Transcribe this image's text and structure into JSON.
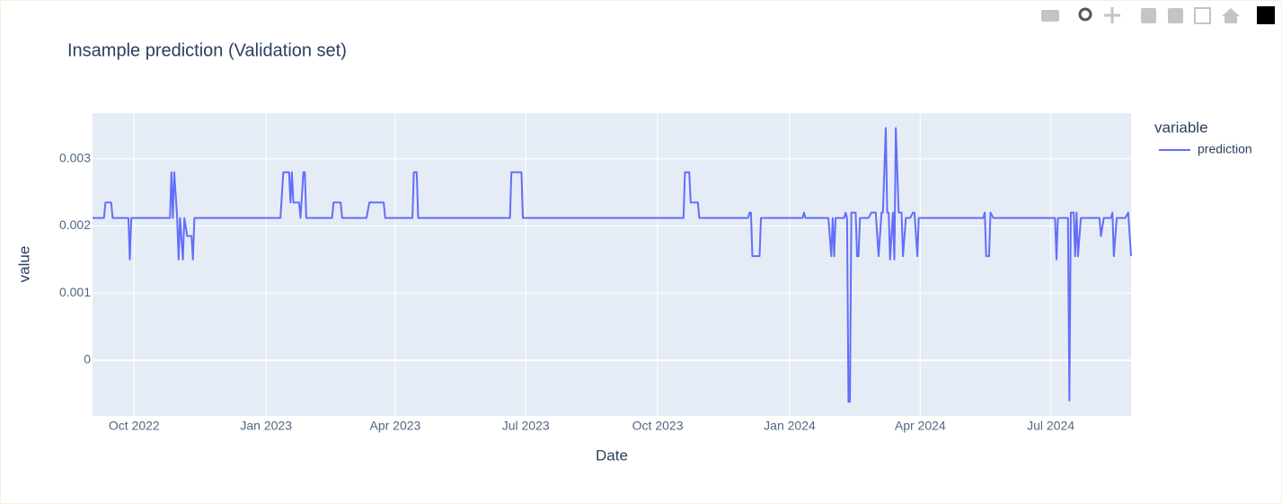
{
  "chart_data": {
    "type": "line",
    "title": "Insample prediction (Validation set)",
    "x_label": "Date",
    "y_label": "value",
    "legend_title": "variable",
    "legend_position": "right",
    "grid": true,
    "x": [
      "2022-09-02",
      "2022-09-10",
      "2022-09-11",
      "2022-09-15",
      "2022-09-16",
      "2022-09-27",
      "2022-09-28",
      "2022-09-29",
      "2022-10-26",
      "2022-10-27",
      "2022-10-28",
      "2022-10-29",
      "2022-10-31",
      "2022-11-01",
      "2022-11-02",
      "2022-11-04",
      "2022-11-05",
      "2022-11-07",
      "2022-11-10",
      "2022-11-11",
      "2022-11-12",
      "2023-01-11",
      "2023-01-13",
      "2023-01-17",
      "2023-01-18",
      "2023-01-19",
      "2023-01-20",
      "2023-01-24",
      "2023-01-25",
      "2023-01-27",
      "2023-01-28",
      "2023-01-29",
      "2023-02-16",
      "2023-02-17",
      "2023-02-22",
      "2023-02-23",
      "2023-03-12",
      "2023-03-14",
      "2023-03-24",
      "2023-03-25",
      "2023-04-13",
      "2023-04-14",
      "2023-04-16",
      "2023-04-17",
      "2023-06-20",
      "2023-06-21",
      "2023-06-28",
      "2023-06-29",
      "2023-10-19",
      "2023-10-20",
      "2023-10-23",
      "2023-10-24",
      "2023-10-29",
      "2023-10-30",
      "2023-12-03",
      "2023-12-04",
      "2023-12-05",
      "2023-12-06",
      "2023-12-11",
      "2023-12-12",
      "2024-01-10",
      "2024-01-11",
      "2024-01-12",
      "2024-01-28",
      "2024-01-30",
      "2024-01-31",
      "2024-02-01",
      "2024-02-02",
      "2024-02-08",
      "2024-02-09",
      "2024-02-10",
      "2024-02-11",
      "2024-02-12",
      "2024-02-13",
      "2024-02-16",
      "2024-02-17",
      "2024-02-18",
      "2024-02-19",
      "2024-02-25",
      "2024-02-27",
      "2024-03-01",
      "2024-03-03",
      "2024-03-05",
      "2024-03-06",
      "2024-03-08",
      "2024-03-09",
      "2024-03-10",
      "2024-03-11",
      "2024-03-13",
      "2024-03-14",
      "2024-03-15",
      "2024-03-17",
      "2024-03-19",
      "2024-03-20",
      "2024-03-22",
      "2024-03-25",
      "2024-03-27",
      "2024-03-28",
      "2024-03-30",
      "2024-03-31",
      "2024-05-15",
      "2024-05-16",
      "2024-05-17",
      "2024-05-19",
      "2024-05-20",
      "2024-05-22",
      "2024-07-04",
      "2024-07-05",
      "2024-07-06",
      "2024-07-13",
      "2024-07-14",
      "2024-07-15",
      "2024-07-17",
      "2024-07-18",
      "2024-07-19",
      "2024-07-20",
      "2024-07-22",
      "2024-08-04",
      "2024-08-05",
      "2024-08-07",
      "2024-08-12",
      "2024-08-13",
      "2024-08-14",
      "2024-08-16",
      "2024-08-22",
      "2024-08-24",
      "2024-08-26"
    ],
    "series": [
      {
        "name": "prediction",
        "color": "#636efa",
        "values": [
          0.00212,
          0.00212,
          0.00235,
          0.00235,
          0.00212,
          0.00212,
          0.0015,
          0.00212,
          0.00212,
          0.0028,
          0.00212,
          0.0028,
          0.00212,
          0.0015,
          0.00212,
          0.0015,
          0.00212,
          0.00185,
          0.00185,
          0.0015,
          0.00212,
          0.00212,
          0.0028,
          0.0028,
          0.00235,
          0.0028,
          0.00235,
          0.00235,
          0.00212,
          0.0028,
          0.0028,
          0.00212,
          0.00212,
          0.00235,
          0.00235,
          0.00212,
          0.00212,
          0.00235,
          0.00235,
          0.00212,
          0.00212,
          0.0028,
          0.0028,
          0.00212,
          0.00212,
          0.0028,
          0.0028,
          0.00212,
          0.00212,
          0.0028,
          0.0028,
          0.00235,
          0.00235,
          0.00212,
          0.00212,
          0.0022,
          0.0022,
          0.00155,
          0.00155,
          0.00212,
          0.00212,
          0.0022,
          0.00212,
          0.00212,
          0.00155,
          0.00212,
          0.00155,
          0.00212,
          0.00212,
          0.0022,
          0.00212,
          -0.00062,
          -0.00062,
          0.0022,
          0.0022,
          0.00155,
          0.00155,
          0.00212,
          0.00212,
          0.0022,
          0.0022,
          0.00155,
          0.0022,
          0.0022,
          0.00346,
          0.0022,
          0.0022,
          0.0015,
          0.0022,
          0.0015,
          0.00346,
          0.0022,
          0.0022,
          0.00155,
          0.00212,
          0.00212,
          0.0022,
          0.0022,
          0.00155,
          0.00212,
          0.00212,
          0.0022,
          0.00155,
          0.00155,
          0.0022,
          0.00212,
          0.00212,
          0.0015,
          0.00212,
          0.00212,
          -0.0006,
          0.0022,
          0.0022,
          0.00155,
          0.0022,
          0.00155,
          0.00212,
          0.00212,
          0.00185,
          0.00212,
          0.00212,
          0.0022,
          0.00155,
          0.00212,
          0.00212,
          0.0022,
          0.00155
        ]
      }
    ],
    "xlim": [
      "2022-09-02",
      "2024-08-26"
    ],
    "xticks": [
      {
        "value": "2022-10-01",
        "label": "Oct 2022"
      },
      {
        "value": "2023-01-01",
        "label": "Jan 2023"
      },
      {
        "value": "2023-04-01",
        "label": "Apr 2023"
      },
      {
        "value": "2023-07-01",
        "label": "Jul 2023"
      },
      {
        "value": "2023-10-01",
        "label": "Oct 2023"
      },
      {
        "value": "2024-01-01",
        "label": "Jan 2024"
      },
      {
        "value": "2024-04-01",
        "label": "Apr 2024"
      },
      {
        "value": "2024-07-01",
        "label": "Jul 2024"
      }
    ],
    "ylim": [
      -0.00083,
      0.00368
    ],
    "yticks": [
      0,
      0.001,
      0.002,
      0.003
    ]
  }
}
